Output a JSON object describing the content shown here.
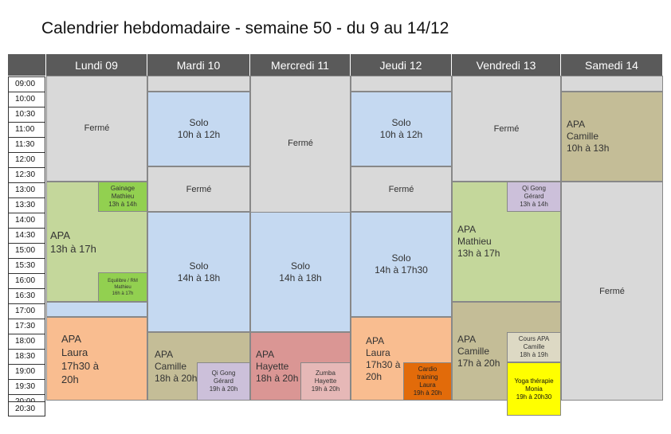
{
  "title": "Calendrier hebdomadaire - semaine 50 - du 9 au 14/12",
  "days": [
    "Lundi 09",
    "Mardi 10",
    "Mercredi 11",
    "Jeudi 12",
    "Vendredi 13",
    "Samedi 14"
  ],
  "times": [
    "09:00",
    "10:00",
    "10:30",
    "11:00",
    "11:30",
    "12:00",
    "12:30",
    "13:00",
    "13:30",
    "14:00",
    "14:30",
    "15:00",
    "15:30",
    "16:00",
    "16:30",
    "17:00",
    "17:30",
    "18:00",
    "18:30",
    "19:00",
    "19:30",
    "20:00",
    "20:30"
  ],
  "colors": {
    "closed": "#d9d9d9",
    "solo": "#c5d9f1",
    "apa_green": "#c4d79b",
    "apa_orange": "#f9bd90",
    "apa_khaki": "#c4bd97",
    "apa_rose": "#da9694",
    "gainage": "#92d050",
    "qigong": "#ccc0da",
    "zumba": "#e6b8b7",
    "cardio": "#e26b0a",
    "cours_apa": "#ddd9c4",
    "yoga": "#ffff00",
    "light_blue": "#c5d9f1"
  },
  "events": {
    "mon_closed": {
      "line1": "Fermé"
    },
    "mon_gainage": {
      "line1": "Gainage",
      "line2": "Mathieu",
      "line3": "13h à 14h"
    },
    "mon_apa": {
      "line1": "APA",
      "line2": "13h à 17h"
    },
    "mon_equilibre": {
      "line1": "Equilibre / RM",
      "line2": "Mathieu",
      "line3": "16h à 17h"
    },
    "mon_apa_laura": {
      "line1": "APA",
      "line2": "Laura",
      "line3": "17h30 à",
      "line4": "20h"
    },
    "tue_solo1": {
      "line1": "Solo",
      "line2": "10h à 12h"
    },
    "tue_closed": {
      "line1": "Fermé"
    },
    "tue_solo2": {
      "line1": "Solo",
      "line2": "14h à 18h"
    },
    "tue_apa": {
      "line1": "APA",
      "line2": "Camille",
      "line3": "18h à 20h"
    },
    "tue_qigong": {
      "line1": "Qi Gong",
      "line2": "Gérard",
      "line3": "19h à 20h"
    },
    "wed_closed": {
      "line1": "Fermé"
    },
    "wed_solo": {
      "line1": "Solo",
      "line2": "14h à 18h"
    },
    "wed_apa": {
      "line1": "APA",
      "line2": "Hayette",
      "line3": "18h à 20h"
    },
    "wed_zumba": {
      "line1": "Zumba",
      "line2": "Hayette",
      "line3": "19h à 20h"
    },
    "thu_solo1": {
      "line1": "Solo",
      "line2": "10h à 12h"
    },
    "thu_closed": {
      "line1": "Fermé"
    },
    "thu_solo2": {
      "line1": "Solo",
      "line2": "14h à 17h30"
    },
    "thu_apa": {
      "line1": "APA",
      "line2": "Laura",
      "line3": "17h30 à",
      "line4": "20h"
    },
    "thu_cardio": {
      "line1": "Cardio",
      "line2": "training",
      "line3": "Laura",
      "line4": "19h à 20h"
    },
    "fri_closed": {
      "line1": "Fermé"
    },
    "fri_qigong": {
      "line1": "Qi Gong",
      "line2": "Gérard",
      "line3": "13h à 14h"
    },
    "fri_apa": {
      "line1": "APA",
      "line2": "Mathieu",
      "line3": "13h à 17h"
    },
    "fri_apa2": {
      "line1": "APA",
      "line2": "Camille",
      "line3": "17h à 20h"
    },
    "fri_cours": {
      "line1": "Cours APA",
      "line2": "Camille",
      "line3": "18h à 19h"
    },
    "fri_yoga": {
      "line1": "Yoga thérapie",
      "line2": "Monia",
      "line3": "19h à 20h30"
    },
    "sat_apa": {
      "line1": "APA",
      "line2": "Camille",
      "line3": "10h à 13h"
    },
    "sat_closed": {
      "line1": "Fermé"
    }
  }
}
